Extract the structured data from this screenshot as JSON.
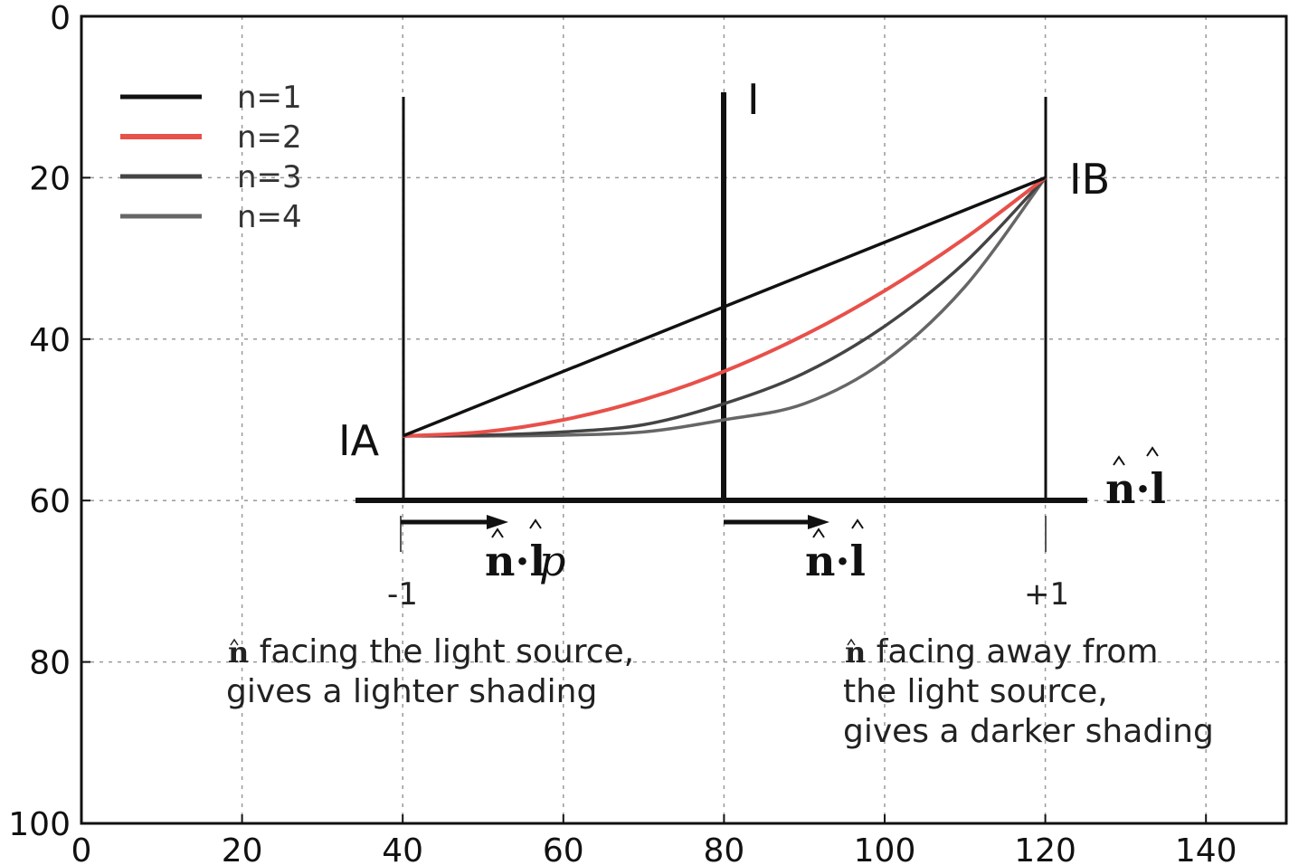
{
  "chart_data": {
    "type": "line",
    "xlim": [
      0,
      150
    ],
    "ylim": [
      100,
      0
    ],
    "y_inverted": true,
    "grid": true,
    "legend_position": "top-left",
    "x_ticks": [
      0,
      20,
      40,
      60,
      80,
      100,
      120,
      140
    ],
    "y_ticks": [
      0,
      20,
      40,
      60,
      80,
      100
    ],
    "series": [
      {
        "name": "n=1",
        "color": "#111111",
        "x": [
          40,
          120
        ],
        "y": [
          52,
          20
        ]
      },
      {
        "name": "n=2",
        "color": "#e8504a",
        "x": [
          40,
          50,
          60,
          70,
          80,
          90,
          100,
          110,
          120
        ],
        "y": [
          52,
          51.5,
          50,
          47.5,
          44,
          39.5,
          34,
          27.5,
          20
        ]
      },
      {
        "name": "n=3",
        "color": "#444444",
        "x": [
          40,
          50,
          60,
          70,
          80,
          90,
          100,
          110,
          120
        ],
        "y": [
          52,
          51.9,
          51.5,
          50.6,
          48,
          44.2,
          38.4,
          30.5,
          20
        ]
      },
      {
        "name": "n=4",
        "color": "#666666",
        "x": [
          40,
          50,
          60,
          70,
          80,
          90,
          100,
          110,
          120
        ],
        "y": [
          52,
          52,
          51.9,
          51.5,
          50,
          48,
          42.7,
          33.5,
          20
        ]
      }
    ],
    "annotations": {
      "IA": "IA",
      "IB": "IB",
      "I": "I",
      "n_dot_l_axis": "n·l",
      "n_dot_lp": "n·l",
      "p": "p",
      "n_dot_l_arrow": "n·l",
      "minus_one": "-1",
      "plus_one": "+1",
      "left_caption_n": "n",
      "left_caption_1": " facing the light source,",
      "left_caption_2": "gives a lighter shading",
      "right_caption_n": "n",
      "right_caption_1": " facing away from",
      "right_caption_2": "the light source,",
      "right_caption_3": "gives a darker shading"
    }
  }
}
